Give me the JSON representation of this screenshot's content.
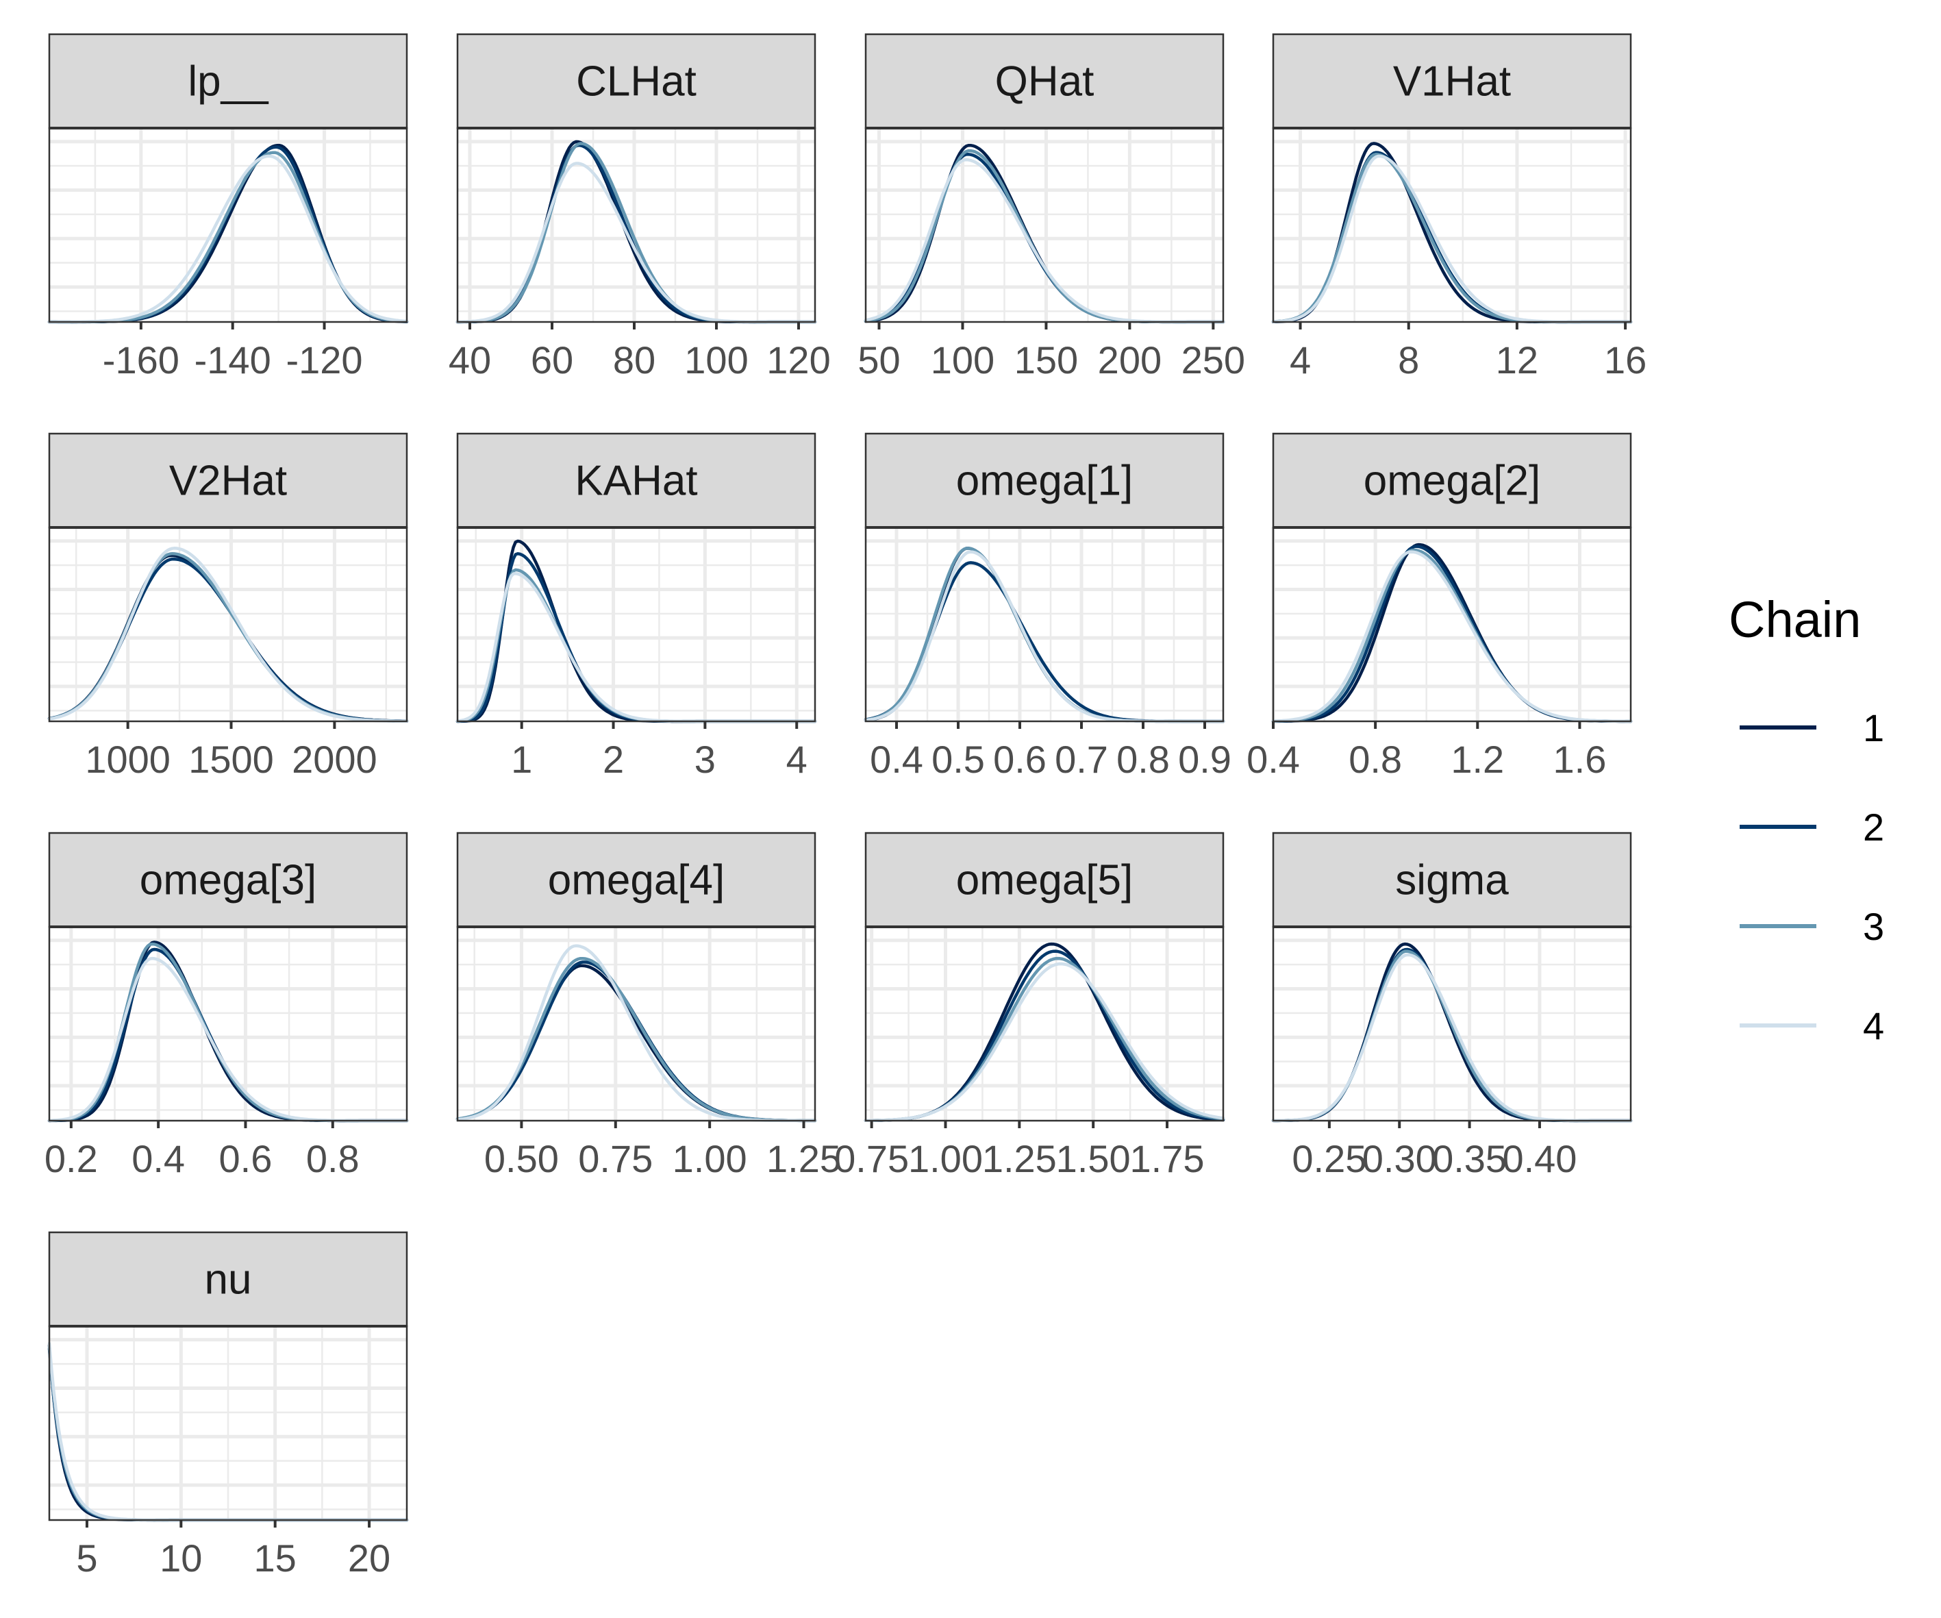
{
  "chart_data": {
    "type": "area",
    "chart_kind": "faceted density plot (marginal posterior per parameter)",
    "title": "",
    "xlabel": "",
    "ylabel": "",
    "facet_grid": {
      "columns": 4,
      "rows": 4,
      "scales": "free"
    },
    "grid": true,
    "y_axis_ticks": false,
    "legend": {
      "title": "Chain",
      "placement": "right",
      "entries": [
        {
          "label": "1",
          "color": "#011f4b"
        },
        {
          "label": "2",
          "color": "#03396c"
        },
        {
          "label": "3",
          "color": "#6497b1"
        },
        {
          "label": "4",
          "color": "#cfdfeb"
        }
      ]
    },
    "panels": [
      {
        "name": "lp__",
        "xlim": [
          -180,
          -102
        ],
        "ticks": [
          -160,
          -140,
          -120
        ],
        "tick_labels": [
          "-160",
          "-140",
          "-120"
        ],
        "minor": [
          -170,
          -150,
          -130,
          -110
        ],
        "series": [
          {
            "chain": "1",
            "mean": -130,
            "sd": 9.2,
            "skew": -0.45,
            "peak": 0.98
          },
          {
            "chain": "2",
            "mean": -130.5,
            "sd": 9.4,
            "skew": -0.4,
            "peak": 0.97
          },
          {
            "chain": "3",
            "mean": -131,
            "sd": 9.6,
            "skew": -0.35,
            "peak": 0.94
          },
          {
            "chain": "4",
            "mean": -132,
            "sd": 10.2,
            "skew": -0.3,
            "peak": 0.92
          }
        ]
      },
      {
        "name": "CLHat",
        "xlim": [
          37,
          124
        ],
        "ticks": [
          40,
          60,
          80,
          100,
          120
        ],
        "tick_labels": [
          "40",
          "60",
          "80",
          "100",
          "120"
        ],
        "minor": [
          50,
          70,
          90,
          110
        ],
        "series": [
          {
            "chain": "1",
            "mean": 66,
            "sd": 8.5,
            "skew": 0.55,
            "peak": 1.0
          },
          {
            "chain": "2",
            "mean": 66.5,
            "sd": 8.8,
            "skew": 0.5,
            "peak": 0.98
          },
          {
            "chain": "3",
            "mean": 67,
            "sd": 9.0,
            "skew": 0.5,
            "peak": 0.99
          },
          {
            "chain": "4",
            "mean": 66,
            "sd": 9.5,
            "skew": 0.55,
            "peak": 0.88
          }
        ]
      },
      {
        "name": "QHat",
        "xlim": [
          42,
          256
        ],
        "ticks": [
          50,
          100,
          150,
          200,
          250
        ],
        "tick_labels": [
          "50",
          "100",
          "150",
          "200",
          "250"
        ],
        "minor": [
          75,
          125,
          175,
          225
        ],
        "series": [
          {
            "chain": "1",
            "mean": 104,
            "sd": 24,
            "skew": 0.65,
            "peak": 0.98
          },
          {
            "chain": "2",
            "mean": 103,
            "sd": 25,
            "skew": 0.6,
            "peak": 0.93
          },
          {
            "chain": "3",
            "mean": 104,
            "sd": 24.5,
            "skew": 0.6,
            "peak": 0.95
          },
          {
            "chain": "4",
            "mean": 102,
            "sd": 26,
            "skew": 0.65,
            "peak": 0.9
          }
        ]
      },
      {
        "name": "V1Hat",
        "xlim": [
          3,
          16.2
        ],
        "ticks": [
          4,
          8,
          12,
          16
        ],
        "tick_labels": [
          "4",
          "8",
          "12",
          "16"
        ],
        "minor": [
          6,
          10,
          14
        ],
        "series": [
          {
            "chain": "1",
            "mean": 6.7,
            "sd": 1.3,
            "skew": 0.7,
            "peak": 0.99
          },
          {
            "chain": "2",
            "mean": 6.8,
            "sd": 1.4,
            "skew": 0.7,
            "peak": 0.94
          },
          {
            "chain": "3",
            "mean": 6.8,
            "sd": 1.4,
            "skew": 0.65,
            "peak": 0.93
          },
          {
            "chain": "4",
            "mean": 6.9,
            "sd": 1.45,
            "skew": 0.7,
            "peak": 0.92
          }
        ]
      },
      {
        "name": "V2Hat",
        "xlim": [
          620,
          2350
        ],
        "ticks": [
          1000,
          1500,
          2000
        ],
        "tick_labels": [
          "1000",
          "1500",
          "2000"
        ],
        "minor": [
          750,
          1250,
          1750,
          2250
        ],
        "series": [
          {
            "chain": "1",
            "mean": 1210,
            "sd": 260,
            "skew": 0.6,
            "peak": 0.92
          },
          {
            "chain": "2",
            "mean": 1220,
            "sd": 260,
            "skew": 0.55,
            "peak": 0.9
          },
          {
            "chain": "3",
            "mean": 1215,
            "sd": 255,
            "skew": 0.55,
            "peak": 0.93
          },
          {
            "chain": "4",
            "mean": 1225,
            "sd": 250,
            "skew": 0.5,
            "peak": 0.96
          }
        ]
      },
      {
        "name": "KAHat",
        "xlim": [
          0.3,
          4.2
        ],
        "ticks": [
          1,
          2,
          3,
          4
        ],
        "tick_labels": [
          "1",
          "2",
          "3",
          "4"
        ],
        "minor": [
          0.5,
          1.5,
          2.5,
          3.5
        ],
        "series": [
          {
            "chain": "1",
            "mean": 0.95,
            "sd": 0.28,
            "skew": 1.3,
            "peak": 1.0
          },
          {
            "chain": "2",
            "mean": 0.95,
            "sd": 0.3,
            "skew": 1.3,
            "peak": 0.93
          },
          {
            "chain": "3",
            "mean": 0.93,
            "sd": 0.32,
            "skew": 1.3,
            "peak": 0.84
          },
          {
            "chain": "4",
            "mean": 0.92,
            "sd": 0.33,
            "skew": 1.3,
            "peak": 0.82
          }
        ]
      },
      {
        "name": "omega[1]",
        "xlim": [
          0.35,
          0.93
        ],
        "ticks": [
          0.4,
          0.5,
          0.6,
          0.7,
          0.8,
          0.9
        ],
        "tick_labels": [
          "0.4",
          "0.5",
          "0.6",
          "0.7",
          "0.8",
          "0.9"
        ],
        "minor": [
          0.45,
          0.55,
          0.65,
          0.75,
          0.85
        ],
        "series": [
          {
            "chain": "1",
            "mean": 0.515,
            "sd": 0.065,
            "skew": 0.6,
            "peak": 0.96
          },
          {
            "chain": "2",
            "mean": 0.52,
            "sd": 0.07,
            "skew": 0.55,
            "peak": 0.88
          },
          {
            "chain": "3",
            "mean": 0.515,
            "sd": 0.066,
            "skew": 0.55,
            "peak": 0.96
          },
          {
            "chain": "4",
            "mean": 0.52,
            "sd": 0.065,
            "skew": 0.5,
            "peak": 0.94
          }
        ]
      },
      {
        "name": "omega[2]",
        "xlim": [
          0.4,
          1.8
        ],
        "ticks": [
          0.4,
          0.8,
          1.2,
          1.6
        ],
        "tick_labels": [
          "0.4",
          "0.8",
          "1.2",
          "1.6"
        ],
        "minor": [
          0.6,
          1.0,
          1.4
        ],
        "series": [
          {
            "chain": "1",
            "mean": 0.97,
            "sd": 0.17,
            "skew": 0.5,
            "peak": 0.98
          },
          {
            "chain": "2",
            "mean": 0.96,
            "sd": 0.175,
            "skew": 0.5,
            "peak": 0.97
          },
          {
            "chain": "3",
            "mean": 0.95,
            "sd": 0.18,
            "skew": 0.5,
            "peak": 0.95
          },
          {
            "chain": "4",
            "mean": 0.94,
            "sd": 0.185,
            "skew": 0.5,
            "peak": 0.94
          }
        ]
      },
      {
        "name": "omega[3]",
        "xlim": [
          0.15,
          0.97
        ],
        "ticks": [
          0.2,
          0.4,
          0.6,
          0.8
        ],
        "tick_labels": [
          "0.2",
          "0.4",
          "0.6",
          "0.8"
        ],
        "minor": [
          0.3,
          0.5,
          0.7,
          0.9
        ],
        "series": [
          {
            "chain": "1",
            "mean": 0.39,
            "sd": 0.08,
            "skew": 0.8,
            "peak": 0.99
          },
          {
            "chain": "2",
            "mean": 0.39,
            "sd": 0.085,
            "skew": 0.8,
            "peak": 0.95
          },
          {
            "chain": "3",
            "mean": 0.385,
            "sd": 0.085,
            "skew": 0.8,
            "peak": 0.98
          },
          {
            "chain": "4",
            "mean": 0.385,
            "sd": 0.09,
            "skew": 0.8,
            "peak": 0.9
          }
        ]
      },
      {
        "name": "omega[4]",
        "xlim": [
          0.33,
          1.28
        ],
        "ticks": [
          0.5,
          0.75,
          1.0,
          1.25
        ],
        "tick_labels": [
          "0.50",
          "0.75",
          "1.00",
          "1.25"
        ],
        "minor": [
          0.375,
          0.625,
          0.875,
          1.125
        ],
        "series": [
          {
            "chain": "1",
            "mean": 0.66,
            "sd": 0.13,
            "skew": 0.45,
            "peak": 0.86
          },
          {
            "chain": "2",
            "mean": 0.665,
            "sd": 0.13,
            "skew": 0.45,
            "peak": 0.88
          },
          {
            "chain": "3",
            "mean": 0.66,
            "sd": 0.13,
            "skew": 0.45,
            "peak": 0.9
          },
          {
            "chain": "4",
            "mean": 0.645,
            "sd": 0.12,
            "skew": 0.5,
            "peak": 0.97
          }
        ]
      },
      {
        "name": "omega[5]",
        "xlim": [
          0.73,
          1.94
        ],
        "ticks": [
          0.75,
          1.0,
          1.25,
          1.5,
          1.75
        ],
        "tick_labels": [
          "0.75",
          "1.00",
          "1.25",
          "1.50",
          "1.75"
        ],
        "minor": [
          0.875,
          1.125,
          1.375,
          1.625,
          1.875
        ],
        "series": [
          {
            "chain": "1",
            "mean": 1.36,
            "sd": 0.17,
            "skew": 0.1,
            "peak": 0.98
          },
          {
            "chain": "2",
            "mean": 1.37,
            "sd": 0.175,
            "skew": 0.1,
            "peak": 0.94
          },
          {
            "chain": "3",
            "mean": 1.38,
            "sd": 0.18,
            "skew": 0.1,
            "peak": 0.9
          },
          {
            "chain": "4",
            "mean": 1.39,
            "sd": 0.185,
            "skew": 0.1,
            "peak": 0.87
          }
        ]
      },
      {
        "name": "sigma",
        "xlim": [
          0.21,
          0.465
        ],
        "ticks": [
          0.25,
          0.3,
          0.35,
          0.4
        ],
        "tick_labels": [
          "0.25",
          "0.30",
          "0.35",
          "0.40"
        ],
        "minor": [
          0.275,
          0.325,
          0.375,
          0.425
        ],
        "series": [
          {
            "chain": "1",
            "mean": 0.304,
            "sd": 0.026,
            "skew": 0.35,
            "peak": 0.98
          },
          {
            "chain": "2",
            "mean": 0.305,
            "sd": 0.027,
            "skew": 0.35,
            "peak": 0.95
          },
          {
            "chain": "3",
            "mean": 0.305,
            "sd": 0.027,
            "skew": 0.35,
            "peak": 0.94
          },
          {
            "chain": "4",
            "mean": 0.306,
            "sd": 0.028,
            "skew": 0.35,
            "peak": 0.92
          }
        ]
      },
      {
        "name": "nu",
        "xlim": [
          3,
          22
        ],
        "ticks": [
          5,
          10,
          15,
          20
        ],
        "tick_labels": [
          "5",
          "10",
          "15",
          "20"
        ],
        "minor": [
          7.5,
          12.5,
          17.5
        ],
        "series": [
          {
            "chain": "1",
            "mode": "exp",
            "scale": 0.65,
            "peak": 0.97
          },
          {
            "chain": "2",
            "mode": "exp",
            "scale": 0.7,
            "peak": 0.95
          },
          {
            "chain": "3",
            "mode": "exp",
            "scale": 0.72,
            "peak": 0.96
          },
          {
            "chain": "4",
            "mode": "exp",
            "scale": 0.75,
            "peak": 0.98
          }
        ]
      }
    ]
  }
}
